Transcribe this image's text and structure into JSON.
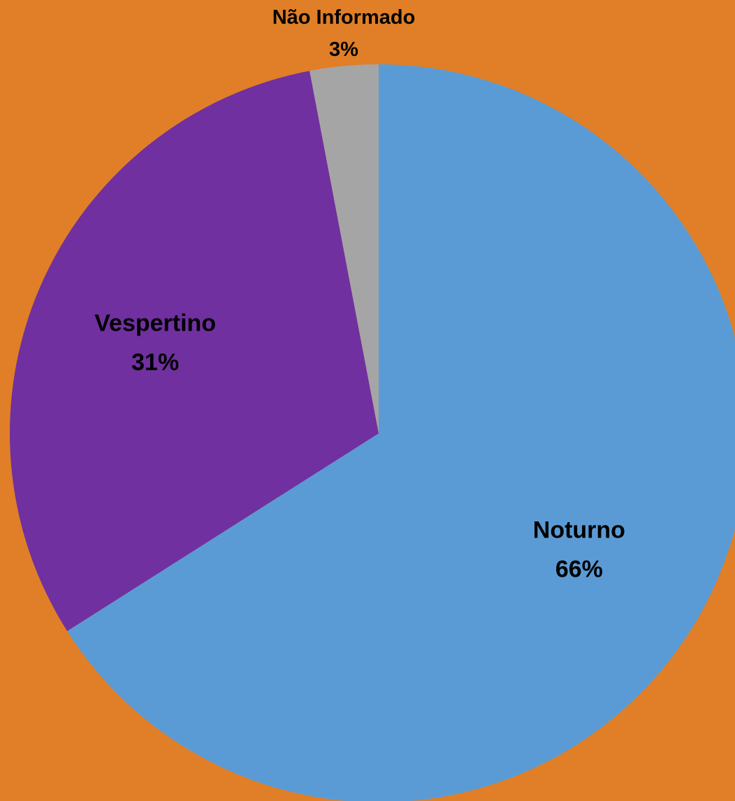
{
  "chart_data": {
    "type": "pie",
    "background": "#E07F27",
    "start_angle_deg": 0,
    "direction": "clockwise",
    "slices": [
      {
        "label": "Noturno",
        "percent_label": "66%",
        "value": 66,
        "color": "#5B9BD5"
      },
      {
        "label": "Vespertino",
        "percent_label": "31%",
        "value": 31,
        "color": "#7030A0"
      },
      {
        "label": "Não Informado",
        "percent_label": "3%",
        "value": 3,
        "color": "#A5A5A5"
      }
    ],
    "title": "",
    "legend": "none"
  }
}
